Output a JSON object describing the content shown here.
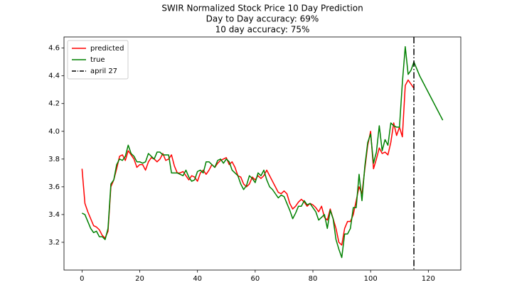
{
  "chart_data": {
    "type": "line",
    "title": "SWIR Normalized Stock Price 10 Day Prediction",
    "subtitle": [
      "Day to Day accuracy: 69%",
      "10 day accuracy: 75%"
    ],
    "x": [
      0,
      1,
      2,
      3,
      4,
      5,
      6,
      7,
      8,
      9,
      10,
      11,
      12,
      13,
      14,
      15,
      16,
      17,
      18,
      19,
      20,
      21,
      22,
      23,
      24,
      25,
      26,
      27,
      28,
      29,
      30,
      31,
      32,
      33,
      34,
      35,
      36,
      37,
      38,
      39,
      40,
      41,
      42,
      43,
      44,
      45,
      46,
      47,
      48,
      49,
      50,
      51,
      52,
      53,
      54,
      55,
      56,
      57,
      58,
      59,
      60,
      61,
      62,
      63,
      64,
      65,
      66,
      67,
      68,
      69,
      70,
      71,
      72,
      73,
      74,
      75,
      76,
      77,
      78,
      79,
      80,
      81,
      82,
      83,
      84,
      85,
      86,
      87,
      88,
      89,
      90,
      91,
      92,
      93,
      94,
      95,
      96,
      97,
      98,
      99,
      100,
      101,
      102,
      103,
      104,
      105,
      106,
      107,
      108,
      109,
      110,
      111,
      112,
      113,
      114,
      115,
      116,
      117,
      118,
      119,
      120,
      121,
      122,
      123,
      124,
      125
    ],
    "series": [
      {
        "name": "predicted",
        "color": "#ff0000",
        "values": [
          3.73,
          3.48,
          3.42,
          3.37,
          3.32,
          3.31,
          3.29,
          3.25,
          3.23,
          3.28,
          3.6,
          3.65,
          3.73,
          3.82,
          3.83,
          3.79,
          3.86,
          3.83,
          3.8,
          3.74,
          3.76,
          3.76,
          3.72,
          3.78,
          3.81,
          3.8,
          3.78,
          3.8,
          3.84,
          3.79,
          3.8,
          3.83,
          3.75,
          3.7,
          3.7,
          3.71,
          3.68,
          3.65,
          3.68,
          3.67,
          3.64,
          3.7,
          3.72,
          3.69,
          3.72,
          3.76,
          3.74,
          3.77,
          3.79,
          3.8,
          3.81,
          3.76,
          3.78,
          3.74,
          3.68,
          3.67,
          3.62,
          3.6,
          3.62,
          3.67,
          3.65,
          3.68,
          3.66,
          3.68,
          3.72,
          3.68,
          3.64,
          3.6,
          3.56,
          3.55,
          3.57,
          3.55,
          3.48,
          3.44,
          3.46,
          3.49,
          3.51,
          3.49,
          3.46,
          3.48,
          3.47,
          3.45,
          3.42,
          3.46,
          3.38,
          3.36,
          3.44,
          3.37,
          3.3,
          3.2,
          3.18,
          3.3,
          3.35,
          3.35,
          3.4,
          3.5,
          3.6,
          3.55,
          3.73,
          3.9,
          4.0,
          3.73,
          3.8,
          3.88,
          3.84,
          3.85,
          3.83,
          3.92,
          4.06,
          3.97,
          4.03,
          3.96,
          4.33,
          4.37,
          4.34,
          4.31,
          null,
          null,
          null,
          null,
          null,
          null,
          null,
          null,
          null,
          null
        ]
      },
      {
        "name": "true",
        "color": "#008000",
        "values": [
          3.41,
          3.4,
          3.35,
          3.3,
          3.27,
          3.28,
          3.24,
          3.24,
          3.22,
          3.3,
          3.62,
          3.65,
          3.76,
          3.8,
          3.79,
          3.82,
          3.9,
          3.84,
          3.82,
          3.78,
          3.78,
          3.77,
          3.78,
          3.84,
          3.82,
          3.8,
          3.85,
          3.85,
          3.83,
          3.83,
          3.83,
          3.7,
          3.7,
          3.7,
          3.69,
          3.68,
          3.72,
          3.67,
          3.64,
          3.65,
          3.71,
          3.72,
          3.7,
          3.78,
          3.78,
          3.76,
          3.74,
          3.79,
          3.8,
          3.77,
          3.8,
          3.78,
          3.72,
          3.7,
          3.68,
          3.62,
          3.58,
          3.61,
          3.68,
          3.66,
          3.63,
          3.7,
          3.68,
          3.72,
          3.65,
          3.6,
          3.58,
          3.55,
          3.52,
          3.54,
          3.53,
          3.48,
          3.43,
          3.37,
          3.41,
          3.46,
          3.46,
          3.5,
          3.47,
          3.48,
          3.45,
          3.42,
          3.36,
          3.38,
          3.4,
          3.3,
          3.43,
          3.37,
          3.22,
          3.15,
          3.09,
          3.26,
          3.26,
          3.3,
          3.45,
          3.45,
          3.69,
          3.5,
          3.75,
          3.92,
          3.98,
          3.77,
          3.85,
          4.04,
          3.86,
          3.94,
          3.9,
          4.06,
          4.04,
          4.03,
          4.03,
          4.35,
          4.61,
          4.41,
          4.44,
          4.5,
          4.45,
          4.4,
          4.36,
          4.32,
          4.28,
          4.24,
          4.2,
          4.16,
          4.12,
          4.08
        ]
      }
    ],
    "vlines": [
      {
        "x": 115,
        "label": "april 27",
        "color": "#000000"
      }
    ],
    "xlim": [
      -6.25,
      131.25
    ],
    "xticks": [
      0,
      20,
      40,
      60,
      80,
      100,
      120
    ],
    "ylim": [
      3.0,
      4.68
    ],
    "yticks": [
      3.2,
      3.4,
      3.6,
      3.8,
      {
        "value": 4.0,
        "label": "4.0"
      },
      4.2,
      4.4,
      4.6
    ],
    "legend": "upper left",
    "grid": false
  }
}
